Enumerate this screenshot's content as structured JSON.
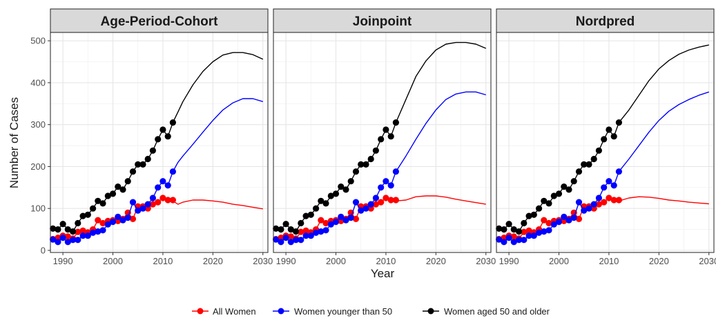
{
  "chart_data": {
    "type": "line",
    "xlabel": "Year",
    "ylabel": "Number of Cases",
    "xlim": [
      1987.5,
      2031
    ],
    "ylim": [
      -5,
      520
    ],
    "x_ticks": [
      1990,
      2000,
      2010,
      2020,
      2030
    ],
    "y_ticks": [
      0,
      100,
      200,
      300,
      400,
      500
    ],
    "grid": true,
    "legend_position": "bottom",
    "series_styles": {
      "all": {
        "name": "All Women",
        "color": "#ff0000"
      },
      "young": {
        "name": "Women younger than 50",
        "color": "#0000ff"
      },
      "old": {
        "name": "Women aged 50 and older",
        "color": "#000000"
      }
    },
    "observed": {
      "x": [
        1988,
        1989,
        1990,
        1991,
        1992,
        1993,
        1994,
        1995,
        1996,
        1997,
        1998,
        1999,
        2000,
        2001,
        2002,
        2003,
        2004,
        2005,
        2006,
        2007,
        2008,
        2009,
        2010,
        2011,
        2012
      ],
      "all": [
        27,
        30,
        35,
        33,
        28,
        44,
        47,
        43,
        50,
        72,
        65,
        70,
        72,
        70,
        75,
        90,
        75,
        105,
        105,
        100,
        110,
        115,
        125,
        120,
        120
      ],
      "young": [
        26,
        20,
        30,
        20,
        25,
        25,
        35,
        35,
        42,
        45,
        48,
        62,
        68,
        80,
        72,
        78,
        115,
        95,
        100,
        110,
        125,
        150,
        165,
        155,
        188
      ],
      "old": [
        52,
        50,
        63,
        50,
        45,
        65,
        82,
        85,
        100,
        118,
        112,
        130,
        135,
        152,
        145,
        165,
        188,
        205,
        205,
        218,
        238,
        265,
        288,
        272,
        305
      ]
    },
    "panels": [
      {
        "title": "Age-Period-Cohort",
        "projected_x": [
          2012,
          2013,
          2014,
          2016,
          2018,
          2020,
          2022,
          2024,
          2026,
          2028,
          2030
        ],
        "all": [
          118,
          110,
          115,
          120,
          120,
          118,
          115,
          110,
          107,
          103,
          99
        ],
        "young": [
          188,
          210,
          225,
          253,
          282,
          310,
          335,
          352,
          362,
          362,
          355
        ],
        "old": [
          305,
          330,
          355,
          395,
          427,
          450,
          466,
          472,
          472,
          467,
          456
        ]
      },
      {
        "title": "Joinpoint",
        "projected_x": [
          2012,
          2014,
          2016,
          2018,
          2020,
          2022,
          2024,
          2026,
          2028,
          2030
        ],
        "all": [
          118,
          120,
          128,
          130,
          130,
          127,
          122,
          118,
          114,
          110
        ],
        "young": [
          188,
          225,
          265,
          303,
          335,
          360,
          373,
          378,
          378,
          371
        ],
        "old": [
          305,
          360,
          415,
          452,
          478,
          492,
          496,
          496,
          492,
          482
        ]
      },
      {
        "title": "Nordpred",
        "projected_x": [
          2012,
          2014,
          2016,
          2018,
          2020,
          2022,
          2024,
          2026,
          2028,
          2030
        ],
        "all": [
          118,
          125,
          128,
          127,
          124,
          120,
          118,
          115,
          113,
          111
        ],
        "young": [
          188,
          218,
          250,
          282,
          310,
          332,
          348,
          360,
          370,
          378
        ],
        "old": [
          305,
          335,
          370,
          405,
          433,
          453,
          468,
          478,
          485,
          490
        ]
      }
    ]
  }
}
